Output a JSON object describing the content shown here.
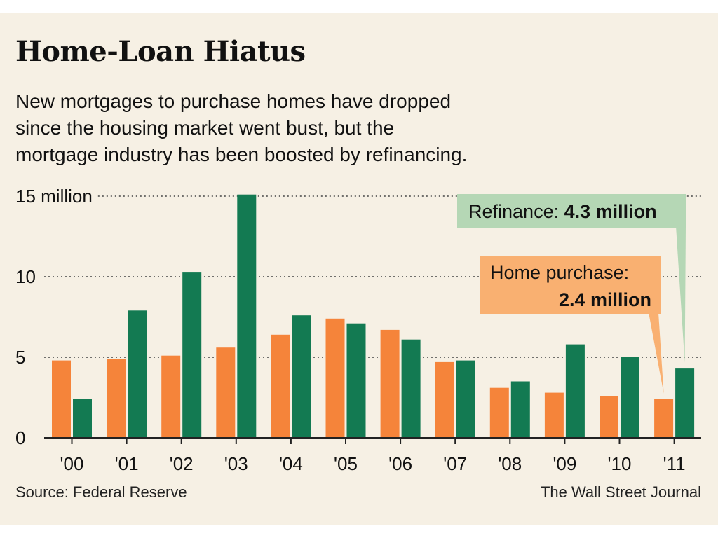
{
  "chart_data": {
    "type": "bar",
    "title": "Home-Loan Hiatus",
    "subtitle_lines": [
      "New mortgages to purchase homes have dropped",
      "since the housing market went bust, but the",
      "mortgage industry has been boosted by refinancing."
    ],
    "categories": [
      "'00",
      "'01",
      "'02",
      "'03",
      "'04",
      "'05",
      "'06",
      "'07",
      "'08",
      "'09",
      "'10",
      "'11"
    ],
    "series": [
      {
        "name": "Home purchase",
        "color": "#f5843a",
        "values": [
          4.8,
          4.9,
          5.1,
          5.6,
          6.4,
          7.4,
          6.7,
          4.7,
          3.1,
          2.8,
          2.6,
          2.4
        ]
      },
      {
        "name": "Refinance",
        "color": "#137a52",
        "values": [
          2.4,
          7.9,
          10.3,
          15.1,
          7.6,
          7.1,
          6.1,
          4.8,
          3.5,
          5.8,
          5.0,
          4.3
        ]
      }
    ],
    "y_ticks": [
      {
        "value": 0,
        "label": "0"
      },
      {
        "value": 5,
        "label": "5"
      },
      {
        "value": 10,
        "label": "10"
      },
      {
        "value": 15,
        "label": "15 million"
      }
    ],
    "ylim": [
      0,
      15
    ],
    "grid": "dotted horizontal",
    "annotations": [
      {
        "series": "Refinance",
        "category": "'11",
        "label": "Refinance:",
        "value_text": "4.3 million",
        "color": "#b5d7b5"
      },
      {
        "series": "Home purchase",
        "category": "'11",
        "label": "Home purchase:",
        "value_text": "2.4 million",
        "color": "#f9b071"
      }
    ],
    "source": "Source: Federal Reserve",
    "credit": "The Wall Street Journal"
  }
}
